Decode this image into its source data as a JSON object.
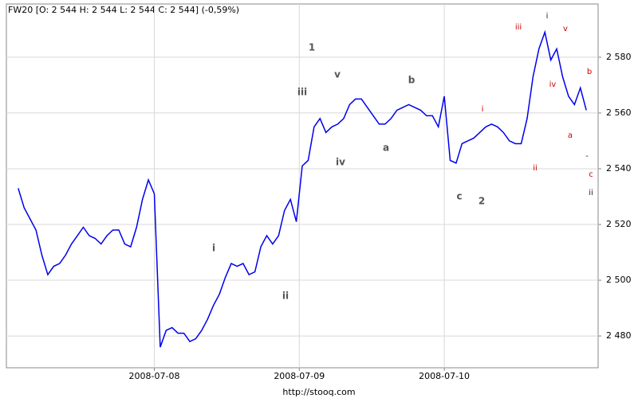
{
  "chart_data": {
    "type": "line",
    "title": "FW20 [O: 2 544  H: 2 544  L: 2 544  C: 2 544] (-0,59%)",
    "footer": "http://stooq.com",
    "x": [
      2,
      3,
      4,
      5,
      6,
      7,
      8,
      9,
      10,
      11,
      12,
      13,
      14,
      15,
      16,
      17,
      18,
      19,
      20,
      21,
      22,
      23,
      24,
      25,
      26,
      27,
      28,
      29,
      30,
      31,
      32,
      33,
      34,
      35,
      36,
      37,
      38,
      39,
      40,
      41,
      42,
      43,
      44,
      45,
      46,
      47,
      48,
      49,
      50,
      51,
      52,
      53,
      54,
      55,
      56,
      57,
      58,
      59,
      60,
      61,
      62,
      63,
      64,
      65,
      66,
      67,
      68,
      69,
      70,
      71,
      72,
      73,
      74,
      75,
      76,
      77,
      78,
      79,
      80,
      81,
      82,
      83,
      84,
      85,
      86,
      87,
      88,
      89,
      90,
      91,
      92,
      93,
      94,
      95,
      96,
      97,
      98
    ],
    "series": [
      {
        "name": "FW20",
        "color": "#0000ee",
        "values": [
          2533,
          2526,
          2522,
          2518,
          2509,
          2502,
          2505,
          2506,
          2509,
          2513,
          2516,
          2519,
          2516,
          2515,
          2513,
          2516,
          2518,
          2518,
          2513,
          2512,
          2519,
          2529,
          2536,
          2531,
          2476,
          2482,
          2483,
          2481,
          2481,
          2478,
          2479,
          2482,
          2486,
          2491,
          2495,
          2501,
          2506,
          2505,
          2506,
          2502,
          2503,
          2512,
          2516,
          2513,
          2516,
          2525,
          2529,
          2521,
          2541,
          2543,
          2555,
          2558,
          2553,
          2555,
          2556,
          2558,
          2563,
          2565,
          2565,
          2562,
          2559,
          2556,
          2556,
          2558,
          2561,
          2562,
          2563,
          2562,
          2561,
          2559,
          2559,
          2555,
          2566,
          2543,
          2542,
          2549,
          2550,
          2551,
          2553,
          2555,
          2556,
          2555,
          2553,
          2550,
          2549,
          2549,
          2558,
          2573,
          2583,
          2589,
          2579,
          2583,
          2573,
          2566,
          2563,
          2569,
          2561
        ]
      }
    ],
    "xlim": [
      0,
      100
    ],
    "xticks": [
      {
        "value": 25,
        "label": "2008-07-08"
      },
      {
        "value": 49.5,
        "label": "2008-07-09"
      },
      {
        "value": 74,
        "label": "2008-07-10"
      }
    ],
    "ylim": [
      2468.6,
      2599.1
    ],
    "yticks": [
      {
        "value": 2480,
        "label": "2 480"
      },
      {
        "value": 2500,
        "label": "2 500"
      },
      {
        "value": 2520,
        "label": "2 520"
      },
      {
        "value": 2540,
        "label": "2 540"
      },
      {
        "value": 2560,
        "label": "2 560"
      },
      {
        "value": 2580,
        "label": "2 580"
      }
    ],
    "grid": true,
    "annotations": [
      "1",
      "iii",
      "v",
      "b",
      "a",
      "iv",
      "i",
      "ii",
      "c",
      "2",
      "iii",
      "i",
      "v",
      "i",
      "iv",
      "b",
      "a",
      "ii",
      "c",
      "-",
      "ii"
    ]
  }
}
